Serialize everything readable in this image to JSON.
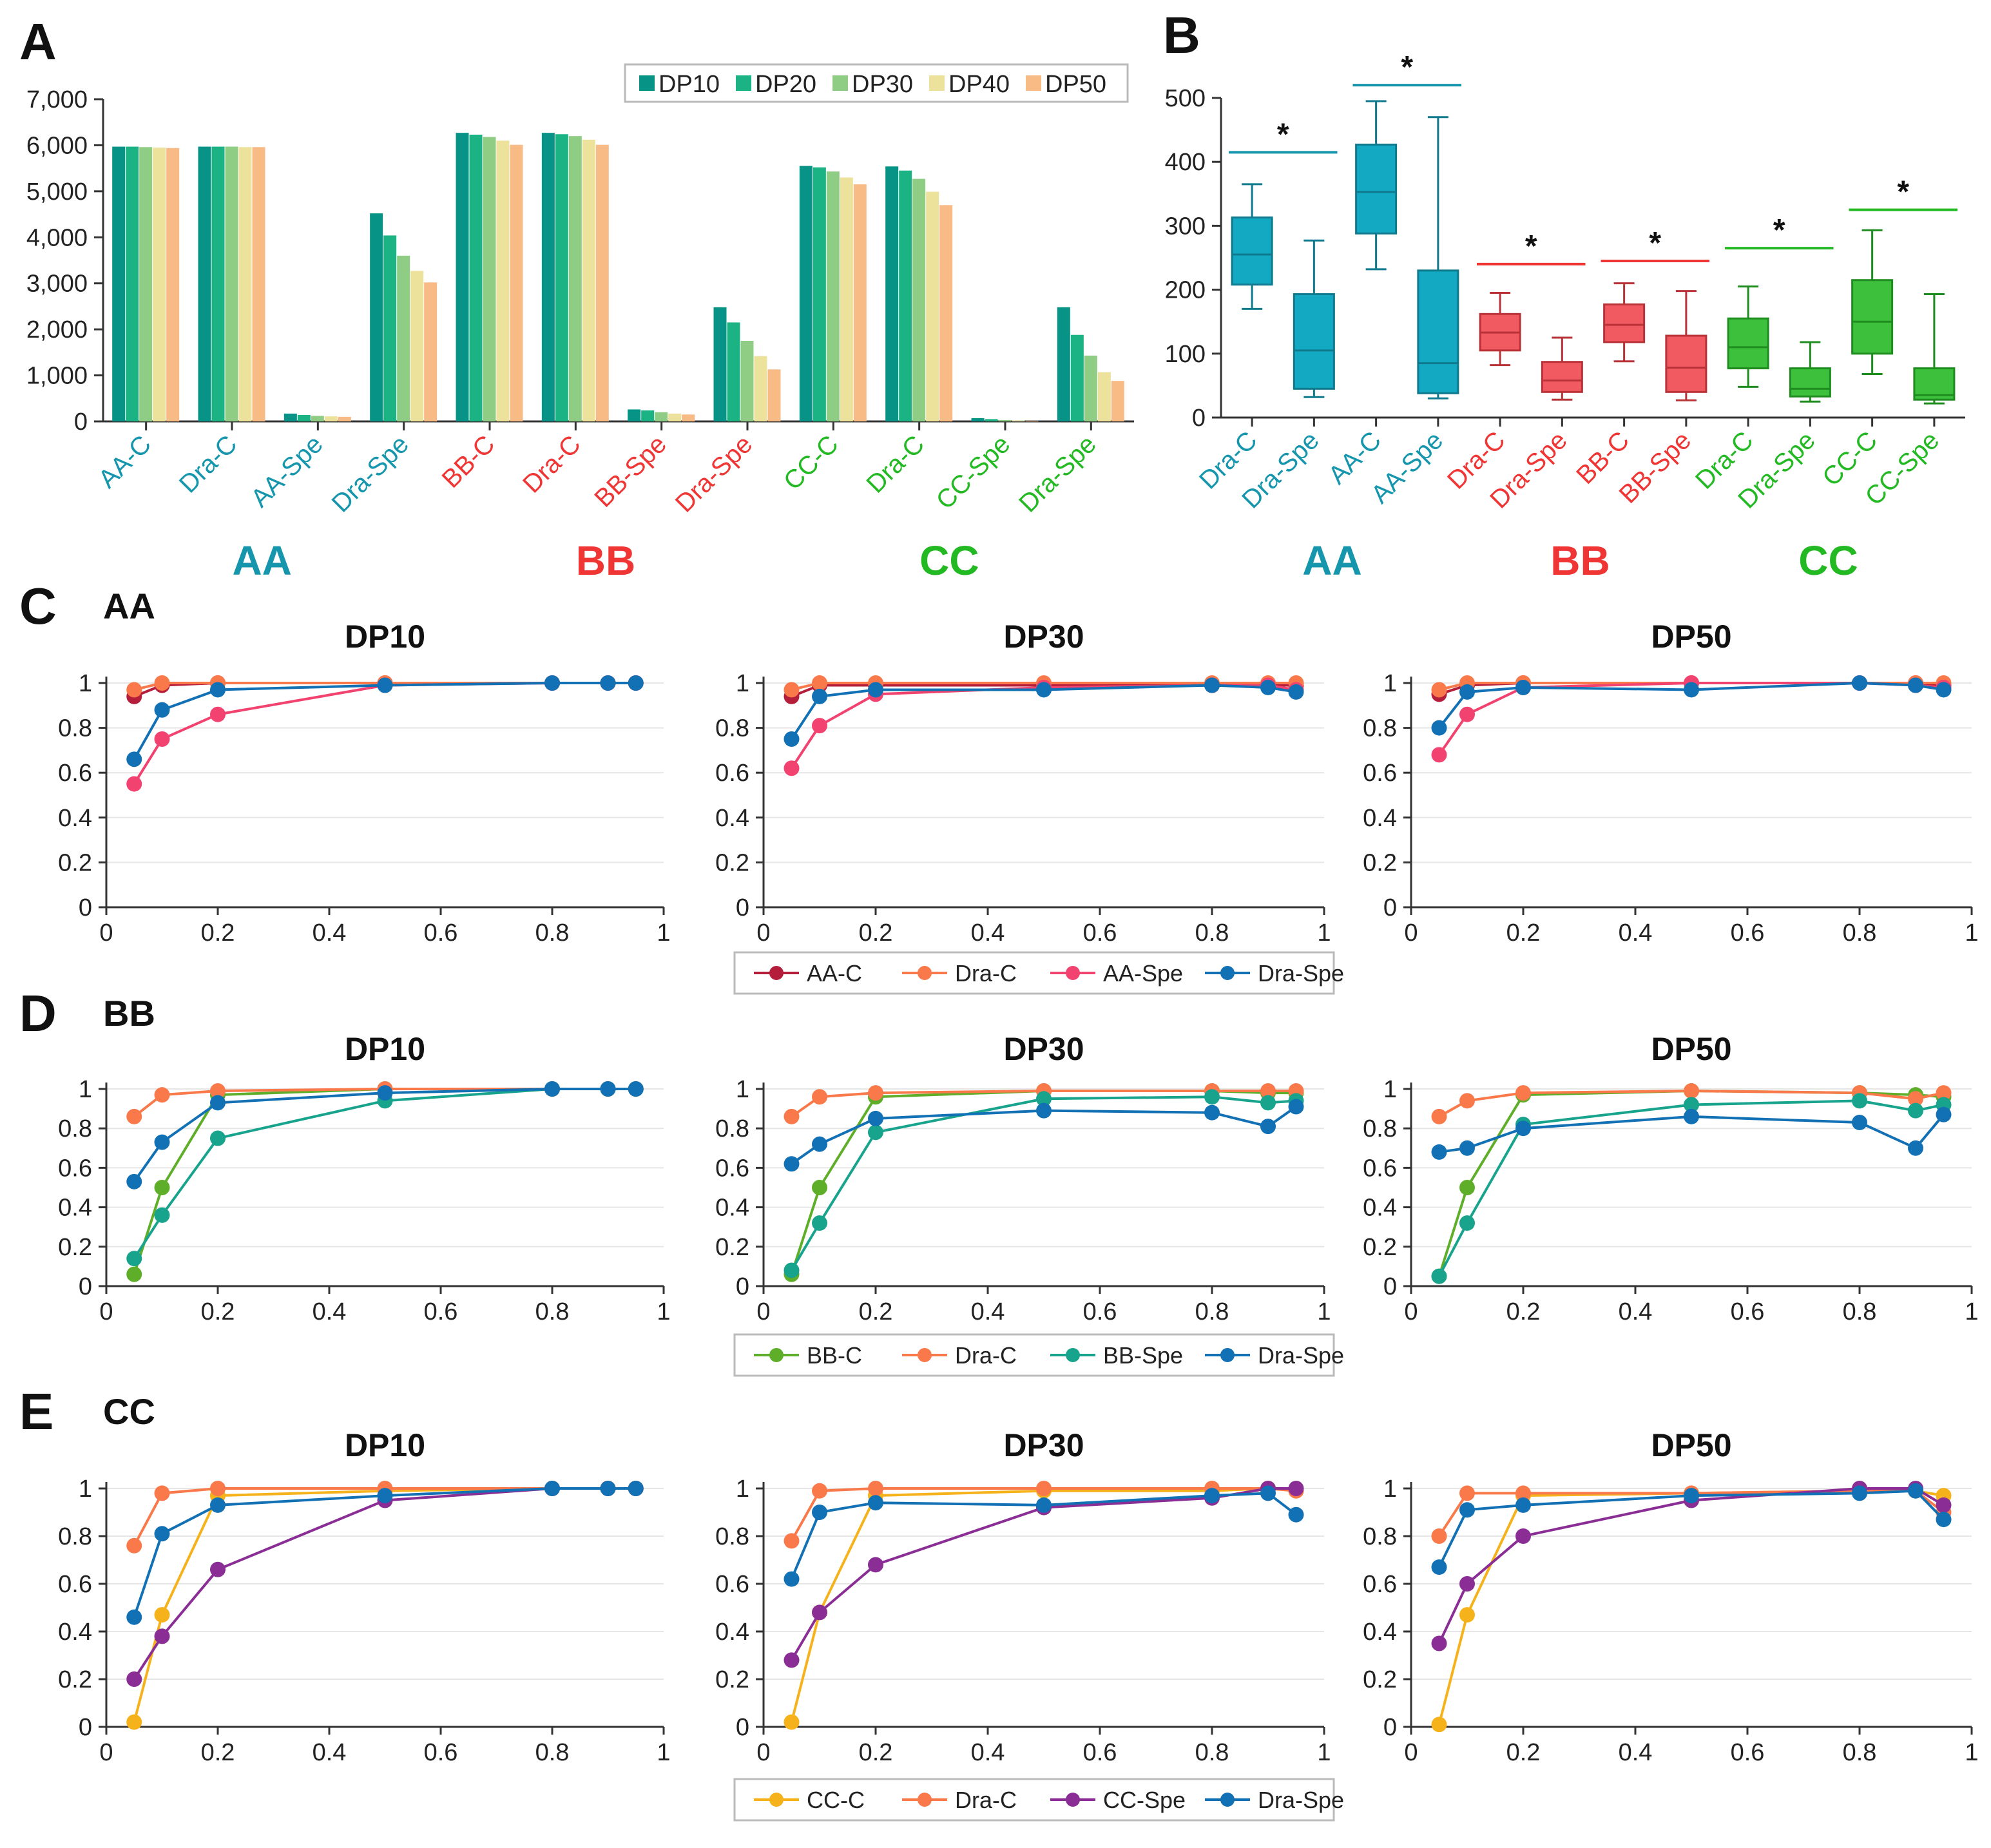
{
  "colors": {
    "AA": "#1596ad",
    "BB": "#f03535",
    "CC": "#22b922",
    "dp": [
      "#079386",
      "#1bb384",
      "#8fcd84",
      "#ede29b",
      "#f9bb85"
    ],
    "AA_box": "#14a9c2",
    "BB_box": "#f25a61",
    "CC_box": "#3dc13d"
  },
  "chart_data": [
    {
      "panel": "A",
      "type": "bar",
      "title": "",
      "ylim": [
        0,
        7000
      ],
      "yticks": [
        "0",
        "1,000",
        "2,000",
        "3,000",
        "4,000",
        "5,000",
        "6,000",
        "7,000"
      ],
      "categories": [
        "AA-C",
        "Dra-C",
        "AA-Spe",
        "Dra-Spe",
        "BB-C",
        "Dra-C",
        "BB-Spe",
        "Dra-Spe",
        "CC-C",
        "Dra-C",
        "CC-Spe",
        "Dra-Spe"
      ],
      "category_groups": [
        "AA",
        "AA",
        "AA",
        "AA",
        "BB",
        "BB",
        "BB",
        "BB",
        "CC",
        "CC",
        "CC",
        "CC"
      ],
      "groups": [
        {
          "name": "AA",
          "key": "AA"
        },
        {
          "name": "BB",
          "key": "BB"
        },
        {
          "name": "CC",
          "key": "CC"
        }
      ],
      "series": [
        {
          "name": "DP10",
          "values": [
            5970,
            5970,
            170,
            4520,
            6270,
            6270,
            260,
            2480,
            5550,
            5540,
            70,
            2480
          ]
        },
        {
          "name": "DP20",
          "values": [
            5970,
            5970,
            140,
            4040,
            6230,
            6240,
            240,
            2150,
            5520,
            5450,
            50,
            1880
          ]
        },
        {
          "name": "DP30",
          "values": [
            5960,
            5970,
            120,
            3600,
            6180,
            6200,
            200,
            1750,
            5430,
            5270,
            30,
            1430
          ]
        },
        {
          "name": "DP40",
          "values": [
            5950,
            5960,
            110,
            3270,
            6100,
            6120,
            170,
            1420,
            5300,
            4990,
            20,
            1070
          ]
        },
        {
          "name": "DP50",
          "values": [
            5940,
            5960,
            100,
            3020,
            6010,
            6010,
            150,
            1130,
            5150,
            4700,
            15,
            880
          ]
        }
      ]
    },
    {
      "panel": "B",
      "type": "box",
      "ylim": [
        0,
        500
      ],
      "yticks": [
        "0",
        "100",
        "200",
        "300",
        "400",
        "500"
      ],
      "categories": [
        "Dra-C",
        "Dra-Spe",
        "AA-C",
        "AA-Spe",
        "Dra-C",
        "Dra-Spe",
        "BB-C",
        "BB-Spe",
        "Dra-C",
        "Dra-Spe",
        "CC-C",
        "CC-Spe"
      ],
      "category_groups": [
        "AA",
        "AA",
        "AA",
        "AA",
        "BB",
        "BB",
        "BB",
        "BB",
        "CC",
        "CC",
        "CC",
        "CC"
      ],
      "groups": [
        {
          "name": "AA",
          "key": "AA"
        },
        {
          "name": "BB",
          "key": "BB"
        },
        {
          "name": "CC",
          "key": "CC"
        }
      ],
      "boxes": [
        {
          "min": 170,
          "q1": 208,
          "median": 255,
          "q3": 313,
          "max": 365
        },
        {
          "min": 32,
          "q1": 45,
          "median": 105,
          "q3": 193,
          "max": 277
        },
        {
          "min": 232,
          "q1": 288,
          "median": 353,
          "q3": 427,
          "max": 495
        },
        {
          "min": 30,
          "q1": 38,
          "median": 85,
          "q3": 230,
          "max": 470
        },
        {
          "min": 82,
          "q1": 105,
          "median": 133,
          "q3": 162,
          "max": 195
        },
        {
          "min": 28,
          "q1": 40,
          "median": 58,
          "q3": 87,
          "max": 125
        },
        {
          "min": 88,
          "q1": 118,
          "median": 145,
          "q3": 177,
          "max": 210
        },
        {
          "min": 27,
          "q1": 40,
          "median": 78,
          "q3": 128,
          "max": 198
        },
        {
          "min": 48,
          "q1": 77,
          "median": 110,
          "q3": 155,
          "max": 205
        },
        {
          "min": 25,
          "q1": 33,
          "median": 45,
          "q3": 77,
          "max": 118
        },
        {
          "min": 68,
          "q1": 100,
          "median": 150,
          "q3": 215,
          "max": 293
        },
        {
          "min": 22,
          "q1": 28,
          "median": 35,
          "q3": 77,
          "max": 193
        }
      ],
      "significance": [
        {
          "label": "*",
          "from": 0,
          "to": 1,
          "value": 415
        },
        {
          "label": "*",
          "from": 2,
          "to": 3,
          "value": 520
        },
        {
          "label": "*",
          "from": 4,
          "to": 5,
          "value": 240
        },
        {
          "label": "*",
          "from": 6,
          "to": 7,
          "value": 245
        },
        {
          "label": "*",
          "from": 8,
          "to": 9,
          "value": 265
        },
        {
          "label": "*",
          "from": 10,
          "to": 11,
          "value": 325
        }
      ]
    },
    {
      "panel": "C",
      "type": "line",
      "row_title": "AA",
      "xlim": [
        0,
        1
      ],
      "ylim": [
        0,
        1
      ],
      "xticks": [
        "0",
        "0.2",
        "0.4",
        "0.6",
        "0.8",
        "1"
      ],
      "yticks": [
        "0",
        "0.2",
        "0.4",
        "0.6",
        "0.8",
        "1"
      ],
      "legend": [
        "AA-C",
        "Dra-C",
        "AA-Spe",
        "Dra-Spe"
      ],
      "series_colors": [
        "#b51e3a",
        "#f9794a",
        "#f2426f",
        "#1270b5"
      ],
      "subplots": [
        {
          "title": "DP10",
          "x": [
            0.05,
            0.1,
            0.2,
            0.5,
            0.8,
            0.9,
            0.95
          ],
          "series": [
            {
              "name": "AA-C",
              "y": [
                0.94,
                0.99,
                1.0,
                1.0,
                1.0,
                1.0,
                1.0
              ]
            },
            {
              "name": "Dra-C",
              "y": [
                0.97,
                1.0,
                1.0,
                1.0,
                1.0,
                1.0,
                1.0
              ]
            },
            {
              "name": "AA-Spe",
              "y": [
                0.55,
                0.75,
                0.86,
                0.99,
                1.0,
                1.0,
                1.0
              ]
            },
            {
              "name": "Dra-Spe",
              "y": [
                0.66,
                0.88,
                0.97,
                0.99,
                1.0,
                1.0,
                1.0
              ]
            }
          ]
        },
        {
          "title": "DP30",
          "x": [
            0.05,
            0.1,
            0.2,
            0.5,
            0.8,
            0.9,
            0.95
          ],
          "series": [
            {
              "name": "AA-C",
              "y": [
                0.94,
                0.99,
                0.99,
                0.99,
                0.99,
                0.99,
                0.99
              ]
            },
            {
              "name": "Dra-C",
              "y": [
                0.97,
                1.0,
                1.0,
                1.0,
                1.0,
                1.0,
                1.0
              ]
            },
            {
              "name": "AA-Spe",
              "y": [
                0.62,
                0.81,
                0.95,
                0.98,
                0.99,
                0.99,
                0.97
              ]
            },
            {
              "name": "Dra-Spe",
              "y": [
                0.75,
                0.94,
                0.97,
                0.97,
                0.99,
                0.98,
                0.96
              ]
            }
          ]
        },
        {
          "title": "DP50",
          "x": [
            0.05,
            0.1,
            0.2,
            0.5,
            0.8,
            0.9,
            0.95
          ],
          "series": [
            {
              "name": "AA-C",
              "y": [
                0.95,
                0.99,
                1.0,
                1.0,
                1.0,
                1.0,
                0.99
              ]
            },
            {
              "name": "Dra-C",
              "y": [
                0.97,
                1.0,
                1.0,
                1.0,
                1.0,
                1.0,
                1.0
              ]
            },
            {
              "name": "AA-Spe",
              "y": [
                0.68,
                0.86,
                0.98,
                1.0,
                1.0,
                0.99,
                0.98
              ]
            },
            {
              "name": "Dra-Spe",
              "y": [
                0.8,
                0.96,
                0.98,
                0.97,
                1.0,
                0.99,
                0.97
              ]
            }
          ]
        }
      ]
    },
    {
      "panel": "D",
      "type": "line",
      "row_title": "BB",
      "xlim": [
        0,
        1
      ],
      "ylim": [
        0,
        1
      ],
      "xticks": [
        "0",
        "0.2",
        "0.4",
        "0.6",
        "0.8",
        "1"
      ],
      "yticks": [
        "0",
        "0.2",
        "0.4",
        "0.6",
        "0.8",
        "1"
      ],
      "legend": [
        "BB-C",
        "Dra-C",
        "BB-Spe",
        "Dra-Spe"
      ],
      "series_colors": [
        "#5fae2a",
        "#f9794a",
        "#18a38d",
        "#1270b5"
      ],
      "subplots": [
        {
          "title": "DP10",
          "x": [
            0.05,
            0.1,
            0.2,
            0.5,
            0.8,
            0.9,
            0.95
          ],
          "series": [
            {
              "name": "BB-C",
              "y": [
                0.06,
                0.5,
                0.97,
                1.0,
                1.0,
                1.0,
                1.0
              ]
            },
            {
              "name": "Dra-C",
              "y": [
                0.86,
                0.97,
                0.99,
                1.0,
                1.0,
                1.0,
                1.0
              ]
            },
            {
              "name": "BB-Spe",
              "y": [
                0.14,
                0.36,
                0.75,
                0.94,
                1.0,
                1.0,
                1.0
              ]
            },
            {
              "name": "Dra-Spe",
              "y": [
                0.53,
                0.73,
                0.93,
                0.98,
                1.0,
                1.0,
                1.0
              ]
            }
          ]
        },
        {
          "title": "DP30",
          "x": [
            0.05,
            0.1,
            0.2,
            0.5,
            0.8,
            0.9,
            0.95
          ],
          "series": [
            {
              "name": "BB-C",
              "y": [
                0.06,
                0.5,
                0.96,
                0.99,
                0.99,
                0.98,
                0.98
              ]
            },
            {
              "name": "Dra-C",
              "y": [
                0.86,
                0.96,
                0.98,
                0.99,
                0.99,
                0.99,
                0.99
              ]
            },
            {
              "name": "BB-Spe",
              "y": [
                0.08,
                0.32,
                0.78,
                0.95,
                0.96,
                0.93,
                0.94
              ]
            },
            {
              "name": "Dra-Spe",
              "y": [
                0.62,
                0.72,
                0.85,
                0.89,
                0.88,
                0.81,
                0.91
              ]
            }
          ]
        },
        {
          "title": "DP50",
          "x": [
            0.05,
            0.1,
            0.2,
            0.5,
            0.8,
            0.9,
            0.95
          ],
          "series": [
            {
              "name": "BB-C",
              "y": [
                0.05,
                0.5,
                0.97,
                0.99,
                0.98,
                0.97,
                0.96
              ]
            },
            {
              "name": "Dra-C",
              "y": [
                0.86,
                0.94,
                0.98,
                0.99,
                0.98,
                0.95,
                0.98
              ]
            },
            {
              "name": "BB-Spe",
              "y": [
                0.05,
                0.32,
                0.82,
                0.92,
                0.94,
                0.89,
                0.92
              ]
            },
            {
              "name": "Dra-Spe",
              "y": [
                0.68,
                0.7,
                0.8,
                0.86,
                0.83,
                0.7,
                0.87
              ]
            }
          ]
        }
      ]
    },
    {
      "panel": "E",
      "type": "line",
      "row_title": "CC",
      "xlim": [
        0,
        1
      ],
      "ylim": [
        0,
        1
      ],
      "xticks": [
        "0",
        "0.2",
        "0.4",
        "0.6",
        "0.8",
        "1"
      ],
      "yticks": [
        "0",
        "0.2",
        "0.4",
        "0.6",
        "0.8",
        "1"
      ],
      "legend": [
        "CC-C",
        "Dra-C",
        "CC-Spe",
        "Dra-Spe"
      ],
      "series_colors": [
        "#f6b21b",
        "#f9794a",
        "#8a2e96",
        "#1270b5"
      ],
      "subplots": [
        {
          "title": "DP10",
          "x": [
            0.05,
            0.1,
            0.2,
            0.5,
            0.8,
            0.9,
            0.95
          ],
          "series": [
            {
              "name": "CC-C",
              "y": [
                0.02,
                0.47,
                0.97,
                0.99,
                1.0,
                1.0,
                1.0
              ]
            },
            {
              "name": "Dra-C",
              "y": [
                0.76,
                0.98,
                1.0,
                1.0,
                1.0,
                1.0,
                1.0
              ]
            },
            {
              "name": "CC-Spe",
              "y": [
                0.2,
                0.38,
                0.66,
                0.95,
                1.0,
                1.0,
                1.0
              ]
            },
            {
              "name": "Dra-Spe",
              "y": [
                0.46,
                0.81,
                0.93,
                0.97,
                1.0,
                1.0,
                1.0
              ]
            }
          ]
        },
        {
          "title": "DP30",
          "x": [
            0.05,
            0.1,
            0.2,
            0.5,
            0.8,
            0.9,
            0.95
          ],
          "series": [
            {
              "name": "CC-C",
              "y": [
                0.02,
                0.48,
                0.97,
                0.99,
                0.99,
                1.0,
                0.99
              ]
            },
            {
              "name": "Dra-C",
              "y": [
                0.78,
                0.99,
                1.0,
                1.0,
                1.0,
                1.0,
                0.99
              ]
            },
            {
              "name": "CC-Spe",
              "y": [
                0.28,
                0.48,
                0.68,
                0.92,
                0.96,
                1.0,
                1.0
              ]
            },
            {
              "name": "Dra-Spe",
              "y": [
                0.62,
                0.9,
                0.94,
                0.93,
                0.97,
                0.98,
                0.89
              ]
            }
          ]
        },
        {
          "title": "DP50",
          "x": [
            0.05,
            0.1,
            0.2,
            0.5,
            0.8,
            0.9,
            0.95
          ],
          "series": [
            {
              "name": "CC-C",
              "y": [
                0.01,
                0.47,
                0.97,
                0.98,
                0.99,
                0.99,
                0.97
              ]
            },
            {
              "name": "Dra-C",
              "y": [
                0.8,
                0.98,
                0.98,
                0.98,
                0.99,
                0.99,
                0.9
              ]
            },
            {
              "name": "CC-Spe",
              "y": [
                0.35,
                0.6,
                0.8,
                0.95,
                1.0,
                1.0,
                0.93
              ]
            },
            {
              "name": "Dra-Spe",
              "y": [
                0.67,
                0.91,
                0.93,
                0.97,
                0.98,
                0.99,
                0.87
              ]
            }
          ]
        }
      ]
    }
  ]
}
